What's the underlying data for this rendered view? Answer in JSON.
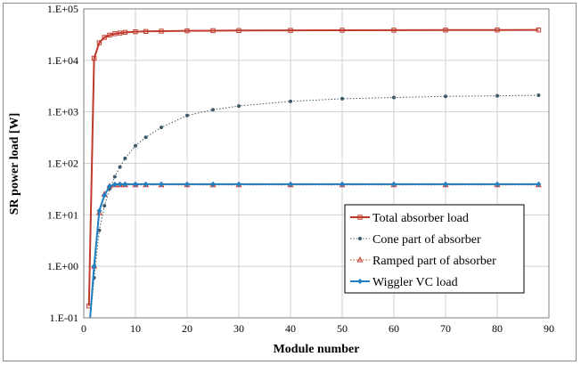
{
  "chart_data": {
    "type": "line",
    "xlabel": "Module number",
    "ylabel": "SR power load [W]",
    "xlim": [
      0,
      90
    ],
    "ylim": [
      0.1,
      100000
    ],
    "yscale": "log",
    "grid": true,
    "legend_position": "bottom-right",
    "x_ticks": [
      "0",
      "10",
      "20",
      "30",
      "40",
      "50",
      "60",
      "70",
      "80",
      "90"
    ],
    "y_ticks": [
      "1.E-01",
      "1.E+00",
      "1.E+01",
      "1.E+02",
      "1.E+03",
      "1.E+04",
      "1.E+05"
    ],
    "x": [
      1,
      2,
      3,
      4,
      5,
      6,
      7,
      8,
      10,
      12,
      15,
      20,
      25,
      30,
      40,
      50,
      60,
      70,
      80,
      88
    ],
    "series": [
      {
        "name": "Total absorber load",
        "color": "#c0392b",
        "line": "solid",
        "marker": "square",
        "values": [
          0.17,
          11000,
          22000,
          28000,
          31000,
          33000,
          34000,
          35000,
          36000,
          36500,
          37000,
          37500,
          37800,
          38000,
          38300,
          38500,
          38700,
          38800,
          38900,
          39000
        ]
      },
      {
        "name": "Cone part of absorber",
        "color": "#3d5a66",
        "line": "dotted",
        "marker": "circle",
        "values": [
          0.05,
          0.6,
          5,
          15,
          32,
          55,
          85,
          125,
          220,
          320,
          500,
          850,
          1100,
          1300,
          1600,
          1800,
          1900,
          2000,
          2050,
          2100
        ]
      },
      {
        "name": "Ramped part of absorber",
        "color": "#c0392b",
        "line": "dotted",
        "marker": "triangle",
        "values": [
          0.05,
          1.0,
          11,
          25,
          36,
          38,
          38,
          38,
          38,
          38,
          38,
          38,
          38,
          38,
          38,
          38,
          38,
          38,
          38,
          38
        ]
      },
      {
        "name": "Wiggler VC load",
        "color": "#1f7fc0",
        "line": "solid",
        "marker": "diamond",
        "values": [
          0.05,
          1.0,
          12,
          24,
          36,
          39,
          39.5,
          39.5,
          39.5,
          39.5,
          39.5,
          39.5,
          39.5,
          39.5,
          39.5,
          39.5,
          39.5,
          39.5,
          39.5,
          39.5
        ]
      }
    ]
  }
}
